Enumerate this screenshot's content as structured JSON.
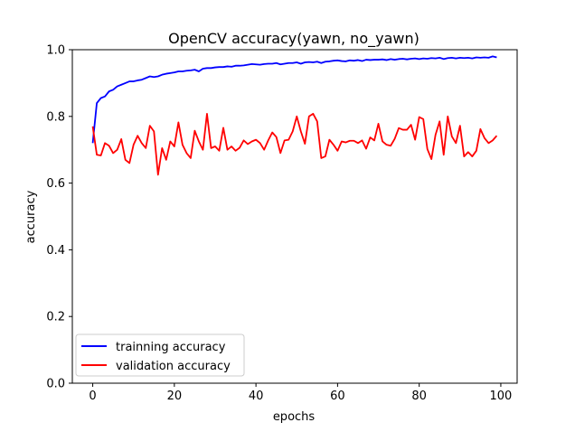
{
  "chart_data": {
    "type": "line",
    "title": "OpenCV accuracy(yawn, no_yawn)",
    "xlabel": "epochs",
    "ylabel": "accuracy",
    "xlim": [
      -5,
      104
    ],
    "ylim": [
      0.0,
      1.0
    ],
    "x_ticks": [
      0,
      20,
      40,
      60,
      80,
      100
    ],
    "y_ticks": [
      0.0,
      0.2,
      0.4,
      0.6,
      0.8,
      1.0
    ],
    "x_tick_labels": [
      "0",
      "20",
      "40",
      "60",
      "80",
      "100"
    ],
    "y_tick_labels": [
      "0.0",
      "0.2",
      "0.4",
      "0.6",
      "0.8",
      "1.0"
    ],
    "grid": false,
    "legend_position": "lower-left",
    "series": [
      {
        "name": "trainning accuracy",
        "color": "#0000ff",
        "x": [
          0,
          1,
          2,
          3,
          4,
          5,
          6,
          7,
          8,
          9,
          10,
          11,
          12,
          13,
          14,
          15,
          16,
          17,
          18,
          19,
          20,
          21,
          22,
          23,
          24,
          25,
          26,
          27,
          28,
          29,
          30,
          31,
          32,
          33,
          34,
          35,
          36,
          37,
          38,
          39,
          40,
          41,
          42,
          43,
          44,
          45,
          46,
          47,
          48,
          49,
          50,
          51,
          52,
          53,
          54,
          55,
          56,
          57,
          58,
          59,
          60,
          61,
          62,
          63,
          64,
          65,
          66,
          67,
          68,
          69,
          70,
          71,
          72,
          73,
          74,
          75,
          76,
          77,
          78,
          79,
          80,
          81,
          82,
          83,
          84,
          85,
          86,
          87,
          88,
          89,
          90,
          91,
          92,
          93,
          94,
          95,
          96,
          97,
          98,
          99
        ],
        "values": [
          0.72,
          0.84,
          0.855,
          0.86,
          0.875,
          0.88,
          0.89,
          0.895,
          0.9,
          0.905,
          0.905,
          0.908,
          0.91,
          0.915,
          0.92,
          0.918,
          0.92,
          0.925,
          0.928,
          0.93,
          0.932,
          0.935,
          0.935,
          0.937,
          0.938,
          0.94,
          0.935,
          0.943,
          0.945,
          0.945,
          0.947,
          0.948,
          0.948,
          0.95,
          0.949,
          0.952,
          0.952,
          0.953,
          0.955,
          0.957,
          0.956,
          0.955,
          0.957,
          0.958,
          0.958,
          0.96,
          0.956,
          0.958,
          0.96,
          0.96,
          0.962,
          0.958,
          0.962,
          0.963,
          0.962,
          0.964,
          0.96,
          0.964,
          0.965,
          0.967,
          0.968,
          0.966,
          0.965,
          0.968,
          0.967,
          0.969,
          0.966,
          0.97,
          0.969,
          0.97,
          0.97,
          0.971,
          0.969,
          0.972,
          0.97,
          0.972,
          0.973,
          0.971,
          0.973,
          0.974,
          0.972,
          0.974,
          0.973,
          0.975,
          0.974,
          0.976,
          0.972,
          0.975,
          0.976,
          0.974,
          0.976,
          0.975,
          0.976,
          0.974,
          0.977,
          0.976,
          0.977,
          0.976,
          0.98,
          0.977
        ]
      },
      {
        "name": "validation accuracy",
        "color": "#ff0000",
        "x": [
          0,
          1,
          2,
          3,
          4,
          5,
          6,
          7,
          8,
          9,
          10,
          11,
          12,
          13,
          14,
          15,
          16,
          17,
          18,
          19,
          20,
          21,
          22,
          23,
          24,
          25,
          26,
          27,
          28,
          29,
          30,
          31,
          32,
          33,
          34,
          35,
          36,
          37,
          38,
          39,
          40,
          41,
          42,
          43,
          44,
          45,
          46,
          47,
          48,
          49,
          50,
          51,
          52,
          53,
          54,
          55,
          56,
          57,
          58,
          59,
          60,
          61,
          62,
          63,
          64,
          65,
          66,
          67,
          68,
          69,
          70,
          71,
          72,
          73,
          74,
          75,
          76,
          77,
          78,
          79,
          80,
          81,
          82,
          83,
          84,
          85,
          86,
          87,
          88,
          89,
          90,
          91,
          92,
          93,
          94,
          95,
          96,
          97,
          98,
          99
        ],
        "values": [
          0.77,
          0.685,
          0.683,
          0.72,
          0.712,
          0.69,
          0.7,
          0.732,
          0.67,
          0.66,
          0.715,
          0.742,
          0.72,
          0.705,
          0.772,
          0.755,
          0.625,
          0.705,
          0.67,
          0.725,
          0.71,
          0.782,
          0.715,
          0.69,
          0.675,
          0.757,
          0.725,
          0.7,
          0.808,
          0.705,
          0.71,
          0.697,
          0.766,
          0.7,
          0.71,
          0.697,
          0.706,
          0.728,
          0.717,
          0.725,
          0.73,
          0.72,
          0.7,
          0.728,
          0.752,
          0.738,
          0.69,
          0.728,
          0.73,
          0.755,
          0.8,
          0.755,
          0.718,
          0.8,
          0.808,
          0.785,
          0.675,
          0.68,
          0.73,
          0.715,
          0.697,
          0.725,
          0.722,
          0.727,
          0.727,
          0.72,
          0.728,
          0.703,
          0.737,
          0.728,
          0.778,
          0.725,
          0.715,
          0.712,
          0.733,
          0.765,
          0.76,
          0.76,
          0.775,
          0.73,
          0.798,
          0.792,
          0.702,
          0.672,
          0.745,
          0.785,
          0.685,
          0.8,
          0.74,
          0.72,
          0.772,
          0.68,
          0.693,
          0.68,
          0.697,
          0.762,
          0.735,
          0.72,
          0.728,
          0.742
        ]
      }
    ]
  }
}
